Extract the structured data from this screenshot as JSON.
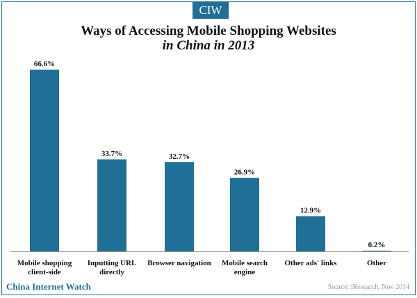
{
  "logo": {
    "text": "CIW"
  },
  "footer": {
    "brand": "China Internet Watch",
    "source": "Source: iResearch, Nov 2014"
  },
  "colors": {
    "bar": "#1f6f96",
    "frame": "#1f6f96"
  },
  "chart_data": {
    "type": "bar",
    "title": "Ways of Accessing Mobile Shopping Websites",
    "subtitle": "in China in 2013",
    "categories": [
      [
        "Mobile shopping",
        "client-side"
      ],
      [
        "Inputting URL",
        "directly"
      ],
      [
        "Browser navigation"
      ],
      [
        "Mobile search",
        "engine"
      ],
      [
        "Other ads' links"
      ],
      [
        "Other"
      ]
    ],
    "values": [
      66.6,
      33.7,
      32.7,
      26.9,
      12.9,
      0.2
    ],
    "value_labels": [
      "66.6%",
      "33.7%",
      "32.7%",
      "26.9%",
      "12.9%",
      "0.2%"
    ],
    "ylim": [
      0,
      70
    ],
    "grid": false,
    "legend": false
  }
}
